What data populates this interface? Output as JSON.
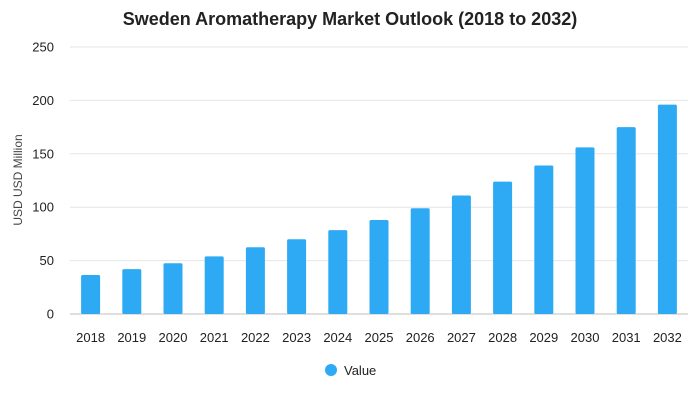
{
  "chart_data": {
    "type": "bar",
    "title": "Sweden Aromatherapy Market Outlook (2018 to 2032)",
    "xlabel": "",
    "ylabel": "USD USD Million",
    "categories": [
      "2018",
      "2019",
      "2020",
      "2021",
      "2022",
      "2023",
      "2024",
      "2025",
      "2026",
      "2027",
      "2028",
      "2029",
      "2030",
      "2031",
      "2032"
    ],
    "series": [
      {
        "name": "Value",
        "values": [
          36.5,
          42,
          47.5,
          54,
          62.5,
          70,
          78.5,
          88,
          99,
          111,
          124,
          139,
          156,
          175,
          196
        ],
        "color": "#2eaaf5"
      }
    ],
    "ylim": [
      0,
      250
    ],
    "yticks": [
      0,
      50,
      100,
      150,
      200,
      250
    ],
    "grid": true,
    "legend_position": "bottom-center"
  }
}
